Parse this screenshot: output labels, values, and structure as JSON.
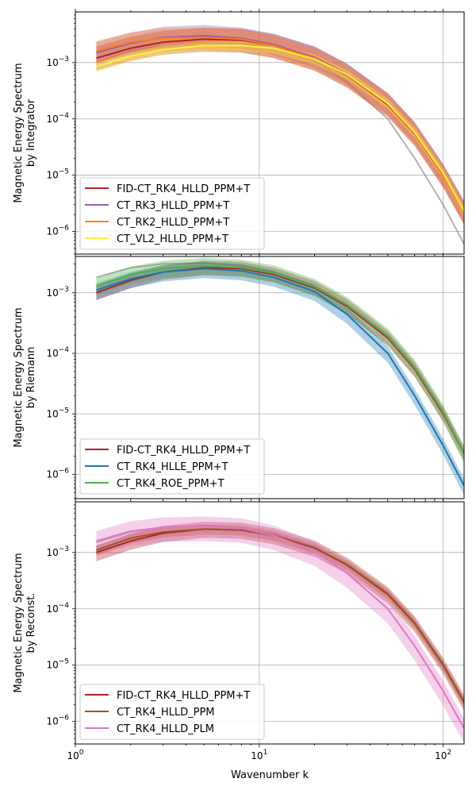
{
  "chart_data": [
    {
      "type": "line",
      "ylabel": [
        "Magnetic Energy Spectrum",
        "by Integrator"
      ],
      "xlabel": "",
      "xscale": "log",
      "yscale": "log",
      "xlim": [
        1,
        130
      ],
      "ylim_exp": [
        -6.4,
        -2.1
      ],
      "grid": true,
      "legend_position": "lower-left",
      "gray_reference": {
        "values": [
          [
            1.3,
            0.001
          ],
          [
            2,
            0.0016
          ],
          [
            3,
            0.002
          ],
          [
            5,
            0.0023
          ],
          [
            8,
            0.0022
          ],
          [
            12,
            0.0018
          ],
          [
            20,
            0.0011
          ],
          [
            30,
            0.00045
          ],
          [
            50,
            0.0001
          ],
          [
            70,
            2e-05
          ],
          [
            100,
            3e-06
          ],
          [
            130,
            6e-07
          ]
        ]
      },
      "series": [
        {
          "name": "FID-CT_RK4_HLLD_PPM+T",
          "color": "#b22222",
          "values": [
            [
              1.3,
              0.0012
            ],
            [
              2,
              0.0018
            ],
            [
              3,
              0.0023
            ],
            [
              5,
              0.0026
            ],
            [
              8,
              0.0025
            ],
            [
              12,
              0.002
            ],
            [
              20,
              0.0012
            ],
            [
              30,
              0.0006
            ],
            [
              50,
              0.00018
            ],
            [
              70,
              5.5e-05
            ],
            [
              100,
              1e-05
            ],
            [
              130,
              2.2e-06
            ]
          ],
          "band": [
            0.6,
            1.6
          ]
        },
        {
          "name": "CT_RK3_HLLD_PPM+T",
          "color": "#9c5bad",
          "values": [
            [
              1.3,
              0.0015
            ],
            [
              2,
              0.0022
            ],
            [
              3,
              0.0028
            ],
            [
              5,
              0.003
            ],
            [
              8,
              0.0027
            ],
            [
              12,
              0.0021
            ],
            [
              20,
              0.00125
            ],
            [
              30,
              0.00062
            ],
            [
              50,
              0.000185
            ],
            [
              70,
              5.6e-05
            ],
            [
              100,
              1e-05
            ],
            [
              130,
              2.2e-06
            ]
          ],
          "band": [
            0.65,
            1.55
          ]
        },
        {
          "name": "CT_RK2_HLLD_PPM+T",
          "color": "#ff7f0e",
          "values": [
            [
              1.3,
              0.0016
            ],
            [
              2,
              0.0023
            ],
            [
              3,
              0.0027
            ],
            [
              5,
              0.0028
            ],
            [
              8,
              0.0026
            ],
            [
              12,
              0.002
            ],
            [
              20,
              0.0012
            ],
            [
              30,
              0.00061
            ],
            [
              50,
              0.000185
            ],
            [
              70,
              5.6e-05
            ],
            [
              100,
              1e-05
            ],
            [
              130,
              2.2e-06
            ]
          ],
          "band": [
            0.6,
            1.5
          ]
        },
        {
          "name": "CT_VL2_HLLD_PPM+T",
          "color": "#ffef3a",
          "values": [
            [
              1.3,
              0.00085
            ],
            [
              2,
              0.0013
            ],
            [
              3,
              0.0017
            ],
            [
              5,
              0.002
            ],
            [
              8,
              0.002
            ],
            [
              12,
              0.0018
            ],
            [
              20,
              0.00115
            ],
            [
              30,
              0.00062
            ],
            [
              50,
              0.00019
            ],
            [
              70,
              5.8e-05
            ],
            [
              100,
              1.1e-05
            ],
            [
              130,
              2.3e-06
            ]
          ],
          "band": [
            0.8,
            1.2
          ]
        }
      ]
    },
    {
      "type": "line",
      "ylabel": [
        "Magnetic Energy Spectrum",
        "by Riemann"
      ],
      "xlabel": "",
      "xscale": "log",
      "yscale": "log",
      "xlim": [
        1,
        130
      ],
      "ylim_exp": [
        -6.4,
        -2.4
      ],
      "grid": true,
      "legend_position": "lower-left",
      "gray_reference": {
        "values": [
          [
            1.3,
            0.0018
          ],
          [
            2,
            0.0026
          ],
          [
            3,
            0.003
          ],
          [
            5,
            0.0031
          ],
          [
            8,
            0.0028
          ],
          [
            12,
            0.0022
          ],
          [
            20,
            0.0013
          ],
          [
            30,
            0.00064
          ],
          [
            50,
            0.0002
          ],
          [
            70,
            6e-05
          ],
          [
            100,
            1.1e-05
          ],
          [
            130,
            2.3e-06
          ]
        ]
      },
      "series": [
        {
          "name": "FID-CT_RK4_HLLD_PPM+T",
          "color": "#b22222",
          "values": [
            [
              1.3,
              0.001
            ],
            [
              2,
              0.0016
            ],
            [
              3,
              0.0022
            ],
            [
              5,
              0.0026
            ],
            [
              8,
              0.0025
            ],
            [
              12,
              0.002
            ],
            [
              20,
              0.0012
            ],
            [
              30,
              0.0006
            ],
            [
              50,
              0.00018
            ],
            [
              70,
              5.5e-05
            ],
            [
              100,
              1e-05
            ],
            [
              130,
              2.2e-06
            ]
          ],
          "band": [
            0.75,
            1.3
          ]
        },
        {
          "name": "CT_RK4_HLLE_PPM+T",
          "color": "#1f77b4",
          "values": [
            [
              1.3,
              0.0011
            ],
            [
              2,
              0.0017
            ],
            [
              3,
              0.0022
            ],
            [
              5,
              0.0025
            ],
            [
              8,
              0.0023
            ],
            [
              12,
              0.0018
            ],
            [
              20,
              0.00105
            ],
            [
              30,
              0.00044
            ],
            [
              50,
              0.0001
            ],
            [
              70,
              2e-05
            ],
            [
              100,
              3e-06
            ],
            [
              130,
              6.5e-07
            ]
          ],
          "band": [
            0.7,
            1.3
          ]
        },
        {
          "name": "CT_RK4_ROE_PPM+T",
          "color": "#4daf4a",
          "values": [
            [
              1.3,
              0.0013
            ],
            [
              2,
              0.002
            ],
            [
              3,
              0.0025
            ],
            [
              5,
              0.0028
            ],
            [
              8,
              0.0026
            ],
            [
              12,
              0.0021
            ],
            [
              20,
              0.00125
            ],
            [
              30,
              0.00063
            ],
            [
              50,
              0.00019
            ],
            [
              70,
              5.8e-05
            ],
            [
              100,
              1.05e-05
            ],
            [
              130,
              2.2e-06
            ]
          ],
          "band": [
            0.7,
            1.35
          ]
        }
      ]
    },
    {
      "type": "line",
      "ylabel": [
        "Magnetic Energy Spectrum",
        "by Reconst."
      ],
      "xlabel": "Wavenumber k",
      "xscale": "log",
      "yscale": "log",
      "xlim": [
        1,
        130
      ],
      "ylim_exp": [
        -6.4,
        -2.1
      ],
      "grid": true,
      "legend_position": "lower-left",
      "gray_reference": {
        "values": [
          [
            1.3,
            0.0015
          ],
          [
            2,
            0.0023
          ],
          [
            3,
            0.0028
          ],
          [
            5,
            0.003
          ],
          [
            8,
            0.0027
          ],
          [
            12,
            0.0021
          ],
          [
            20,
            0.00125
          ],
          [
            30,
            0.00062
          ],
          [
            50,
            0.00019
          ],
          [
            70,
            5.7e-05
          ],
          [
            100,
            1.05e-05
          ],
          [
            130,
            2.2e-06
          ]
        ]
      },
      "series": [
        {
          "name": "FID-CT_RK4_HLLD_PPM+T",
          "color": "#b22222",
          "values": [
            [
              1.3,
              0.001
            ],
            [
              2,
              0.0016
            ],
            [
              3,
              0.0022
            ],
            [
              5,
              0.0026
            ],
            [
              8,
              0.0025
            ],
            [
              12,
              0.002
            ],
            [
              20,
              0.0012
            ],
            [
              30,
              0.0006
            ],
            [
              50,
              0.00018
            ],
            [
              70,
              5.5e-05
            ],
            [
              100,
              1e-05
            ],
            [
              130,
              2.2e-06
            ]
          ],
          "band": [
            0.7,
            1.35
          ]
        },
        {
          "name": "CT_RK4_HLLD_PPM",
          "color": "#a0522d",
          "values": [
            [
              1.3,
              0.0011
            ],
            [
              2,
              0.0018
            ],
            [
              3,
              0.0023
            ],
            [
              5,
              0.0026
            ],
            [
              8,
              0.0025
            ],
            [
              12,
              0.002
            ],
            [
              20,
              0.0012
            ],
            [
              30,
              0.00061
            ],
            [
              50,
              0.000185
            ],
            [
              70,
              5.6e-05
            ],
            [
              100,
              1e-05
            ],
            [
              130,
              2.2e-06
            ]
          ],
          "band": [
            0.8,
            1.2
          ]
        },
        {
          "name": "CT_RK4_HLLD_PLM",
          "color": "#e377c2",
          "values": [
            [
              1.3,
              0.0016
            ],
            [
              2,
              0.0024
            ],
            [
              3,
              0.0028
            ],
            [
              5,
              0.0029
            ],
            [
              8,
              0.0027
            ],
            [
              12,
              0.002
            ],
            [
              20,
              0.00105
            ],
            [
              30,
              0.00043
            ],
            [
              50,
              0.0001
            ],
            [
              70,
              2.2e-05
            ],
            [
              100,
              3.5e-06
            ],
            [
              130,
              7.5e-07
            ]
          ],
          "band": [
            0.55,
            1.5
          ]
        }
      ]
    }
  ]
}
